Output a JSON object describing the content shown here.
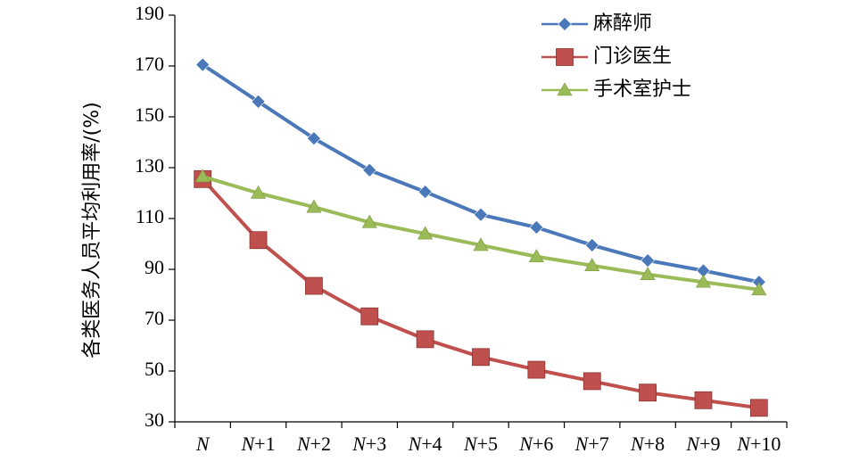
{
  "chart_data": {
    "type": "line",
    "title": "",
    "xlabel": "",
    "ylabel": "各类医务人员平均利用率/(%)",
    "ylim": [
      30,
      190
    ],
    "yticks": [
      30,
      50,
      70,
      90,
      110,
      130,
      150,
      170,
      190
    ],
    "grid": false,
    "legend_position": "top-right",
    "categories": [
      {
        "base": "N",
        "suffix": ""
      },
      {
        "base": "N",
        "suffix": "+1"
      },
      {
        "base": "N",
        "suffix": "+2"
      },
      {
        "base": "N",
        "suffix": "+3"
      },
      {
        "base": "N",
        "suffix": "+4"
      },
      {
        "base": "N",
        "suffix": "+5"
      },
      {
        "base": "N",
        "suffix": "+6"
      },
      {
        "base": "N",
        "suffix": "+7"
      },
      {
        "base": "N",
        "suffix": "+8"
      },
      {
        "base": "N",
        "suffix": "+9"
      },
      {
        "base": "N",
        "suffix": "+10"
      }
    ],
    "series": [
      {
        "name": "麻醉师",
        "color": "#4a78b8",
        "marker": "diamond",
        "values": [
          170.5,
          156,
          141.5,
          129,
          120.5,
          111.5,
          106.5,
          99.5,
          93.5,
          89.5,
          85
        ]
      },
      {
        "name": "门诊医生",
        "color": "#c0504d",
        "marker": "square",
        "values": [
          125.5,
          101.5,
          83.5,
          71.5,
          62.5,
          55.5,
          50.5,
          46,
          41.5,
          38.5,
          35.5
        ]
      },
      {
        "name": "手术室护士",
        "color": "#9bbb59",
        "marker": "triangle",
        "values": [
          126.5,
          120,
          114.5,
          108.5,
          104,
          99.5,
          95,
          91.5,
          88,
          85,
          82
        ]
      }
    ]
  }
}
